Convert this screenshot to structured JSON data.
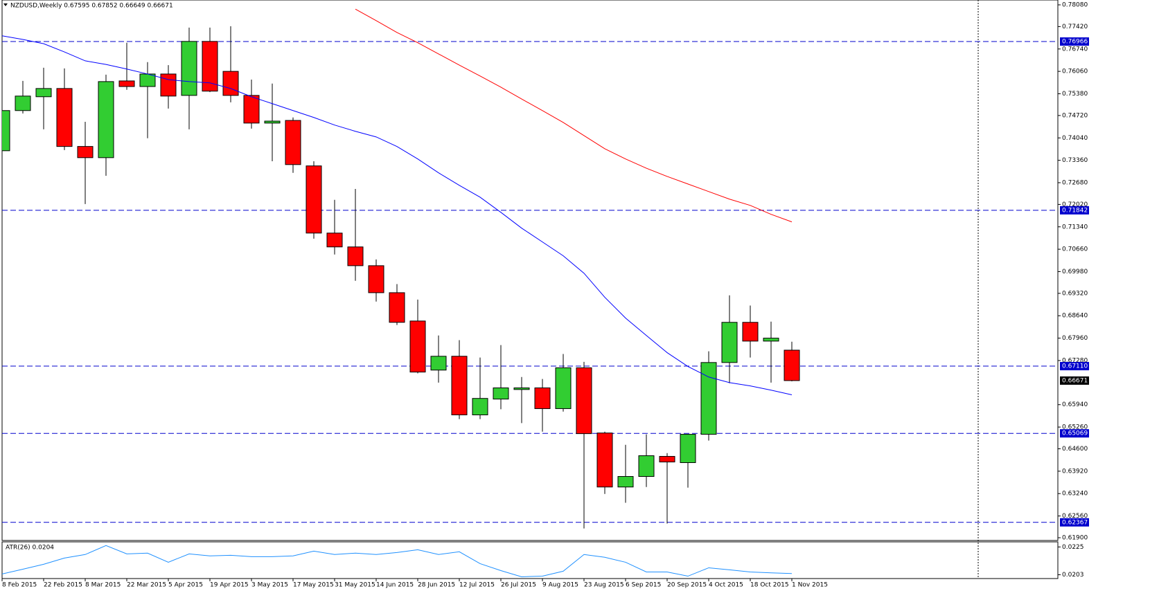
{
  "chart_data": [
    {
      "type": "candlestick",
      "title": "NZDUSD,Weekly  0.67595 0.67852 0.66649 0.66671",
      "categories": [
        "8 Feb 2015",
        null,
        "22 Feb 2015",
        null,
        "8 Mar 2015",
        null,
        "22 Mar 2015",
        null,
        "5 Apr 2015",
        null,
        "19 Apr 2015",
        null,
        "3 May 2015",
        null,
        "17 May 2015",
        null,
        "31 May 2015",
        null,
        "14 Jun 2015",
        null,
        "28 Jun 2015",
        null,
        "12 Jul 2015",
        null,
        "26 Jul 2015",
        null,
        "9 Aug 2015",
        null,
        "23 Aug 2015",
        null,
        "6 Sep 2015",
        null,
        "20 Sep 2015",
        null,
        "4 Oct 2015",
        null,
        "18 Oct 2015",
        null,
        "1 Nov 2015"
      ],
      "open": [
        0.7365,
        0.7487,
        0.7529,
        0.7554,
        0.7378,
        0.7344,
        0.7577,
        0.756,
        0.7598,
        0.7533,
        0.7697,
        0.7606,
        0.7533,
        0.7449,
        0.7457,
        0.7319,
        0.7115,
        0.7073,
        0.7016,
        0.6934,
        0.6848,
        0.6699,
        0.6741,
        0.6563,
        0.6611,
        0.664,
        0.6645,
        0.6582,
        0.6706,
        0.6508,
        0.6344,
        0.6376,
        0.6437,
        0.6418,
        0.6504,
        0.6722,
        0.6844,
        0.6787,
        0.67595
      ],
      "high": [
        0.7497,
        0.7577,
        0.7617,
        0.7615,
        0.7453,
        0.7596,
        0.7693,
        0.7634,
        0.7625,
        0.7739,
        0.7739,
        0.7743,
        0.7581,
        0.7569,
        0.7466,
        0.7333,
        0.7216,
        0.7249,
        0.7035,
        0.696,
        0.6913,
        0.6804,
        0.679,
        0.6737,
        0.6775,
        0.6678,
        0.6672,
        0.6748,
        0.6724,
        0.6512,
        0.6472,
        0.6504,
        0.6447,
        0.6504,
        0.6756,
        0.6926,
        0.6895,
        0.6846,
        0.67852
      ],
      "low": [
        0.7329,
        0.7478,
        0.743,
        0.7367,
        0.7203,
        0.7289,
        0.755,
        0.7403,
        0.7493,
        0.743,
        0.7543,
        0.7512,
        0.7432,
        0.7333,
        0.7298,
        0.7098,
        0.705,
        0.697,
        0.6907,
        0.6836,
        0.6689,
        0.6661,
        0.655,
        0.655,
        0.658,
        0.6538,
        0.6512,
        0.6573,
        0.6218,
        0.6323,
        0.6296,
        0.6344,
        0.6233,
        0.6342,
        0.6485,
        0.6659,
        0.6737,
        0.6661,
        0.66649
      ],
      "close": [
        0.7487,
        0.7531,
        0.7554,
        0.7378,
        0.7344,
        0.7575,
        0.756,
        0.7598,
        0.7531,
        0.7697,
        0.7546,
        0.7533,
        0.7449,
        0.7455,
        0.7323,
        0.7115,
        0.7073,
        0.7016,
        0.6934,
        0.6844,
        0.6693,
        0.6741,
        0.6563,
        0.6613,
        0.6645,
        0.6645,
        0.6582,
        0.6706,
        0.6506,
        0.6344,
        0.6376,
        0.6439,
        0.642,
        0.6504,
        0.6722,
        0.6844,
        0.6787,
        0.6796,
        0.66671
      ],
      "up_color": "#32cd32",
      "down_color": "#ff0000",
      "series": [
        {
          "color": "#0000ff",
          "values": [
            0.7714,
            0.7703,
            0.769,
            0.7665,
            0.7638,
            0.7627,
            0.7613,
            0.7598,
            0.7581,
            0.7575,
            0.7571,
            0.7554,
            0.7529,
            0.7508,
            0.7487,
            0.7466,
            0.7443,
            0.7424,
            0.7407,
            0.7378,
            0.734,
            0.7298,
            0.726,
            0.7224,
            0.7178,
            0.713,
            0.7088,
            0.7046,
            0.6993,
            0.692,
            0.6857,
            0.6804,
            0.6752,
            0.671,
            0.6678,
            0.6661,
            0.6651,
            0.6638,
            0.6624
          ]
        },
        {
          "color": "#ff0000",
          "values": [
            null,
            null,
            null,
            null,
            null,
            null,
            null,
            null,
            null,
            null,
            null,
            null,
            null,
            null,
            null,
            null,
            null,
            0.7795,
            0.776,
            0.7724,
            0.7693,
            0.7659,
            0.7625,
            0.7592,
            0.7558,
            0.7522,
            0.7487,
            0.7451,
            0.7411,
            0.7371,
            0.734,
            0.7312,
            0.7287,
            0.7264,
            0.7241,
            0.7218,
            0.7199,
            0.7172,
            0.7149
          ]
        }
      ],
      "levels": [
        0.76966,
        0.71842,
        {
          "value": 0.6711,
          "label": "0.67110"
        },
        0.65069,
        0.62367
      ],
      "level_color": "#0000cd",
      "ylim": [
        0.619,
        0.7808
      ],
      "yticks": [
        {
          "value": 0.7808,
          "label": "0.78080"
        },
        {
          "value": 0.7742,
          "label": "0.77420"
        },
        {
          "value": 0.7674,
          "label": "0.76740"
        },
        {
          "value": 0.7606,
          "label": "0.76060"
        },
        {
          "value": 0.7538,
          "label": "0.75380"
        },
        {
          "value": 0.7472,
          "label": "0.74720"
        },
        {
          "value": 0.7404,
          "label": "0.74040"
        },
        {
          "value": 0.7336,
          "label": "0.73360"
        },
        {
          "value": 0.7268,
          "label": "0.72680"
        },
        {
          "value": 0.7202,
          "label": "0.72020"
        },
        {
          "value": 0.7134,
          "label": "0.71340"
        },
        {
          "value": 0.7066,
          "label": "0.70660"
        },
        {
          "value": 0.6998,
          "label": "0.69980"
        },
        {
          "value": 0.6932,
          "label": "0.69320"
        },
        {
          "value": 0.6864,
          "label": "0.68640"
        },
        {
          "value": 0.6796,
          "label": "0.67960"
        },
        {
          "value": 0.6728,
          "label": "0.67280"
        },
        {
          "value": 0.6594,
          "label": "0.65940"
        },
        {
          "value": 0.6526,
          "label": "0.65260"
        },
        {
          "value": 0.646,
          "label": "0.64600"
        },
        {
          "value": 0.6392,
          "label": "0.63920"
        },
        {
          "value": 0.6324,
          "label": "0.63240"
        },
        {
          "value": 0.6256,
          "label": "0.62560"
        },
        {
          "value": 0.619,
          "label": "0.61900"
        }
      ]
    },
    {
      "type": "line",
      "title": "ATR(26) 0.0204",
      "series": [
        {
          "color": "#1e90ff",
          "values": [
            0.02036,
            0.02074,
            0.02113,
            0.02162,
            0.0219,
            0.02261,
            0.02195,
            0.02201,
            0.02129,
            0.02195,
            0.02179,
            0.02184,
            0.02173,
            0.02173,
            0.02179,
            0.02217,
            0.0219,
            0.02201,
            0.0219,
            0.02206,
            0.02228,
            0.0219,
            0.02212,
            0.02118,
            0.02063,
            0.02014,
            0.02019,
            0.02058,
            0.0219,
            0.02168,
            0.02129,
            0.02052,
            0.02052,
            0.02019,
            0.02085,
            0.02069,
            0.02052,
            0.02045,
            0.0204
          ]
        }
      ],
      "ylim": [
        0.02,
        0.0229
      ],
      "yticks": [
        0.0225,
        0.0203
      ]
    }
  ]
}
